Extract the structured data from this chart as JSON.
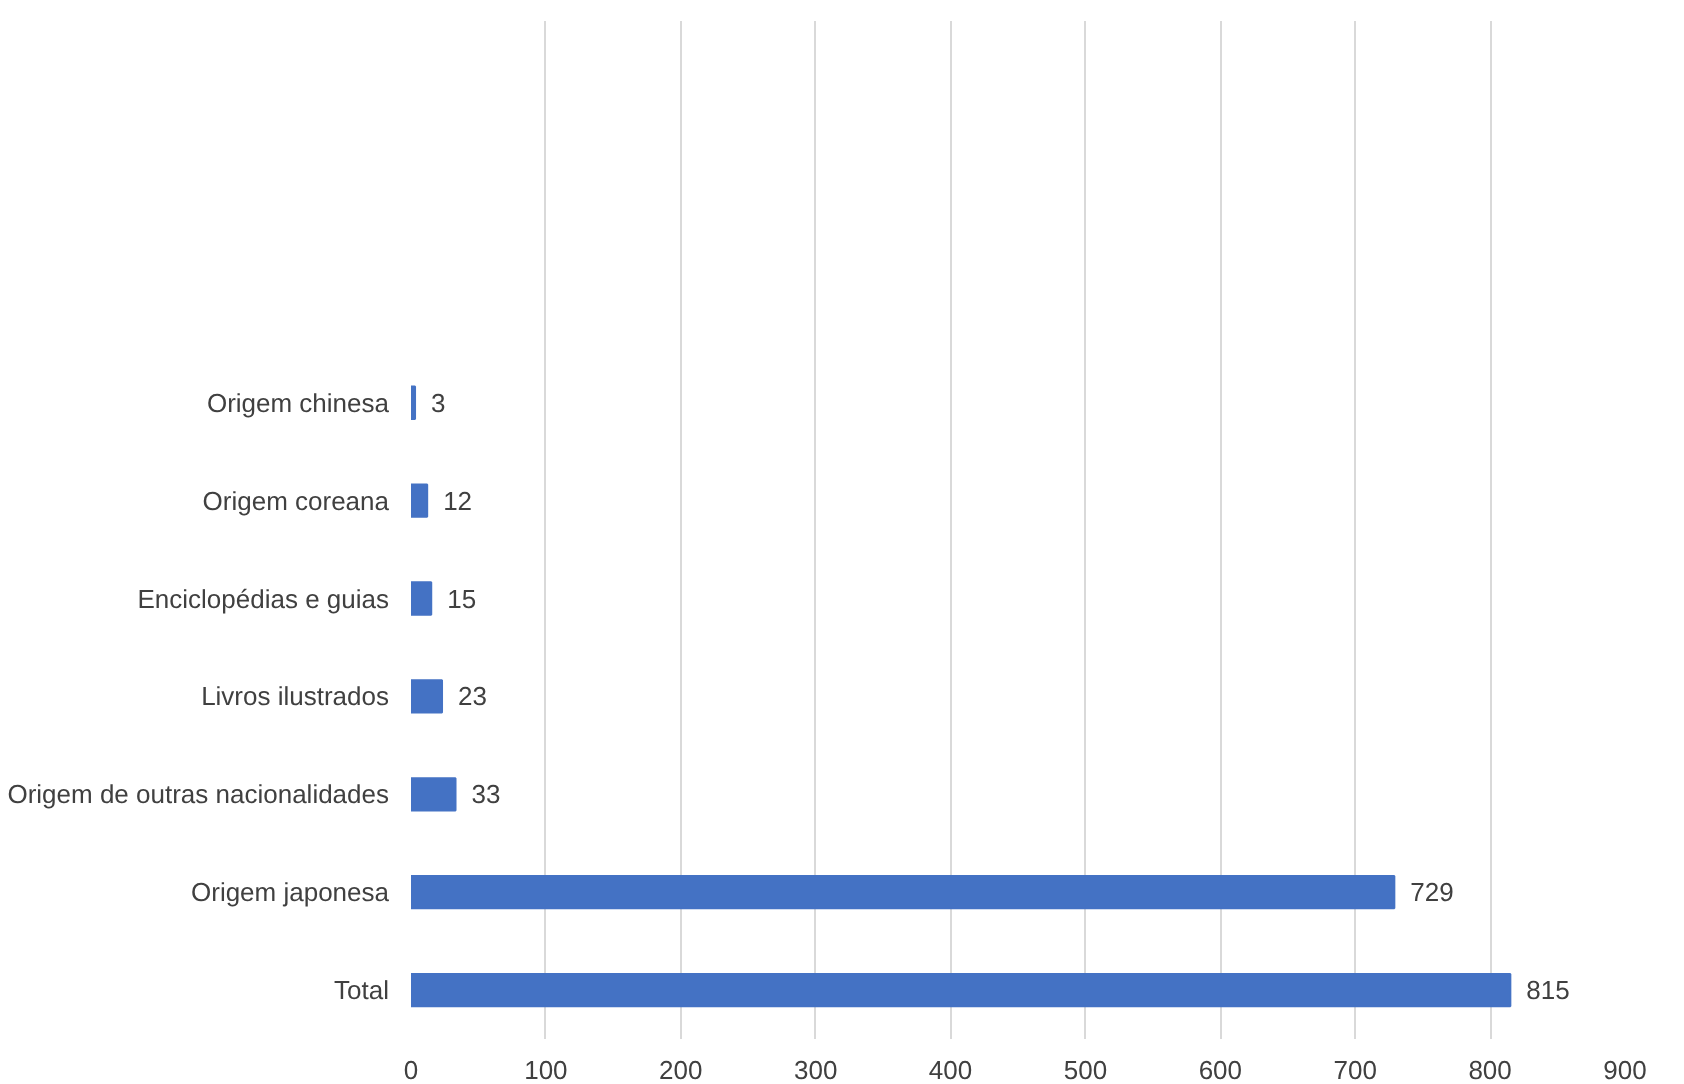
{
  "chart_data": {
    "type": "bar",
    "orientation": "horizontal",
    "categories": [
      "Origem chinesa",
      "Origem coreana",
      "Enciclopédias e guias",
      "Livros ilustrados",
      "Origem de outras nacionalidades",
      "Origem japonesa",
      "Total"
    ],
    "values": [
      3,
      12,
      15,
      23,
      33,
      729,
      815
    ],
    "color": "#4472c4",
    "xlim": [
      0,
      900
    ],
    "xticks": [
      0,
      100,
      200,
      300,
      400,
      500,
      600,
      700,
      800,
      900
    ],
    "grid": "x",
    "data_labels": true
  }
}
